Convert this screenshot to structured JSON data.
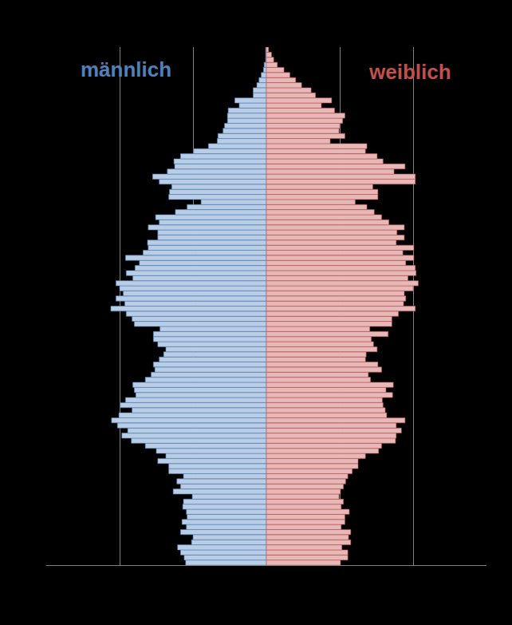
{
  "chart_data": {
    "type": "bar",
    "orientation": "horizontal",
    "stacked": false,
    "grid": true,
    "tick_labels": false,
    "xlim": [
      -300,
      300
    ],
    "xticks": [
      -200,
      -100,
      0,
      100,
      200
    ],
    "categories": [
      null,
      null,
      null,
      null,
      null,
      null,
      null,
      null,
      null,
      null,
      null,
      null,
      null,
      null,
      null,
      null,
      null,
      null,
      null,
      null,
      null,
      null,
      null,
      null,
      null,
      null,
      null,
      null,
      null,
      null,
      null,
      null,
      null,
      null,
      null,
      null,
      null,
      null,
      null,
      null,
      null,
      null,
      null,
      null,
      null,
      null,
      null,
      null,
      null,
      null,
      null,
      null,
      null,
      null,
      null,
      null,
      null,
      null,
      null,
      null,
      null,
      null,
      null,
      null,
      null,
      null,
      null,
      null,
      null,
      null,
      null,
      null,
      null,
      null,
      null,
      null,
      null,
      null,
      null,
      null,
      null,
      null,
      null,
      null,
      null,
      null,
      null,
      null,
      null,
      null,
      null,
      null,
      null,
      null,
      null,
      null,
      null,
      null,
      null,
      null,
      null,
      null
    ],
    "series": [
      {
        "name": "männlich",
        "color": "#4f81bd",
        "values": [
          -110,
          -112,
          -117,
          -121,
          -102,
          -100,
          -117,
          -109,
          -115,
          -108,
          -109,
          -114,
          -113,
          -101,
          -127,
          -117,
          -122,
          -113,
          -133,
          -133,
          -148,
          -137,
          -150,
          -165,
          -184,
          -197,
          -189,
          -203,
          -211,
          -201,
          -183,
          -199,
          -192,
          -178,
          -180,
          -182,
          -165,
          -157,
          -152,
          -154,
          -146,
          -140,
          -137,
          -148,
          -154,
          -154,
          -145,
          -180,
          -183,
          -191,
          -212,
          -193,
          -205,
          -195,
          -200,
          -205,
          -182,
          -191,
          -179,
          -173,
          -192,
          -168,
          -161,
          -162,
          -148,
          -148,
          -161,
          -146,
          -151,
          -124,
          -108,
          -89,
          -133,
          -132,
          -129,
          -146,
          -155,
          -135,
          -125,
          -126,
          -117,
          -99,
          -79,
          -67,
          -66,
          -59,
          -57,
          -53,
          -53,
          -52,
          -37,
          -43,
          -18,
          -18,
          -13,
          -10,
          -7,
          -4,
          -3,
          -1,
          -1,
          -1
        ]
      },
      {
        "name": "weiblich",
        "color": "#c0504d",
        "values": [
          101,
          111,
          111,
          103,
          115,
          112,
          115,
          102,
          107,
          107,
          113,
          102,
          105,
          99,
          101,
          105,
          108,
          111,
          117,
          125,
          125,
          135,
          153,
          157,
          176,
          177,
          184,
          177,
          189,
          164,
          162,
          159,
          158,
          172,
          163,
          173,
          142,
          139,
          157,
          152,
          135,
          136,
          151,
          146,
          143,
          166,
          141,
          171,
          171,
          180,
          203,
          187,
          190,
          188,
          200,
          207,
          193,
          204,
          203,
          190,
          201,
          186,
          201,
          177,
          188,
          178,
          188,
          167,
          157,
          147,
          137,
          121,
          152,
          152,
          145,
          203,
          203,
          174,
          189,
          159,
          151,
          135,
          137,
          87,
          107,
          99,
          100,
          104,
          107,
          93,
          75,
          89,
          67,
          61,
          48,
          40,
          32,
          24,
          15,
          10,
          7,
          3
        ]
      }
    ]
  }
}
